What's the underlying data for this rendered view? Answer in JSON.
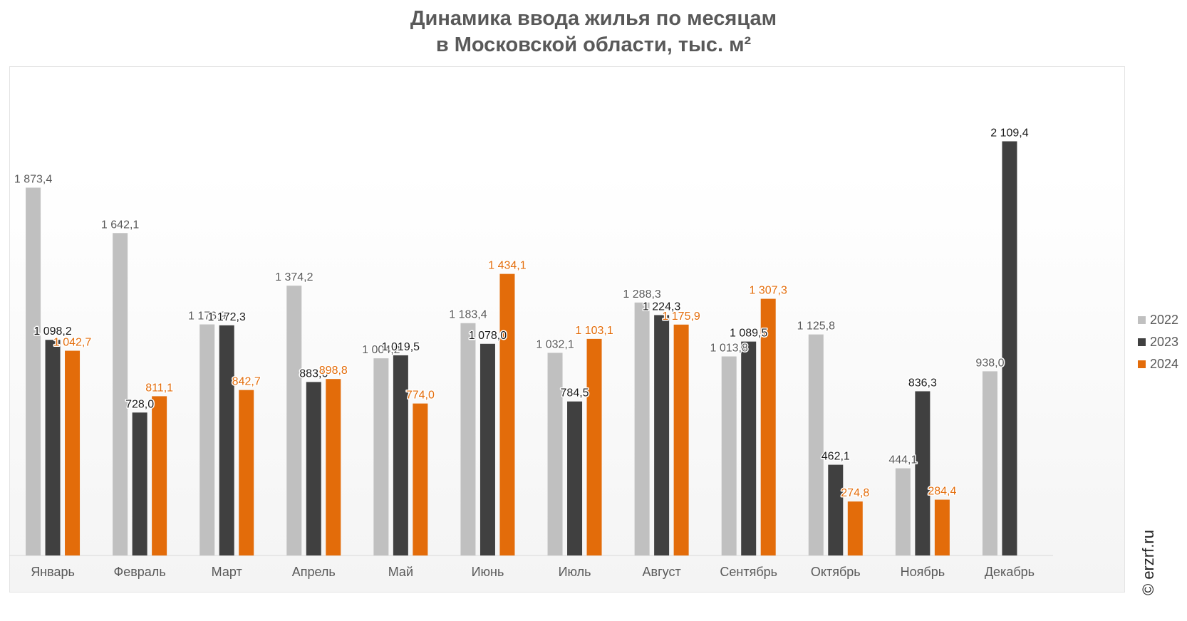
{
  "chart_data": {
    "type": "bar",
    "title_lines": [
      "Динамика ввода жилья по месяцам",
      "в Московской области, тыс. м²"
    ],
    "categories": [
      "Январь",
      "Февраль",
      "Март",
      "Апрель",
      "Май",
      "Июнь",
      "Июль",
      "Август",
      "Сентябрь",
      "Октябрь",
      "Ноябрь",
      "Декабрь"
    ],
    "series": [
      {
        "name": "2022",
        "color": "#c0c0c0",
        "label_color": "#595959",
        "values": [
          1873.4,
          1642.1,
          1176.9,
          1374.2,
          1004.2,
          1183.4,
          1032.1,
          1288.3,
          1013.8,
          1125.8,
          444.1,
          938.0
        ],
        "labels": [
          "1 873,4",
          "1 642,1",
          "1 176,9",
          "1 374,2",
          "1 004,2",
          "1 183,4",
          "1 032,1",
          "1 288,3",
          "1 013,8",
          "1 125,8",
          "444,1",
          "938,0"
        ]
      },
      {
        "name": "2023",
        "color": "#404040",
        "label_color": "#1a1a1a",
        "values": [
          1098.2,
          728.0,
          1172.3,
          883.6,
          1019.5,
          1078.0,
          784.5,
          1224.3,
          1089.5,
          462.1,
          836.3,
          2109.4
        ],
        "labels": [
          "1 098,2",
          "728,0",
          "1 172,3",
          "883,6",
          "1 019,5",
          "1 078,0",
          "784,5",
          "1 224,3",
          "1 089,5",
          "462,1",
          "836,3",
          "2 109,4"
        ]
      },
      {
        "name": "2024",
        "color": "#e36c0a",
        "label_color": "#e36c0a",
        "values": [
          1042.7,
          811.1,
          842.7,
          898.8,
          774.0,
          1434.1,
          1103.1,
          1175.9,
          1307.3,
          274.8,
          284.4,
          null
        ],
        "labels": [
          "1 042,7",
          "811,1",
          "842,7",
          "898,8",
          "774,0",
          "1 434,1",
          "1 103,1",
          "1 175,9",
          "1 307,3",
          "274,8",
          "284,4",
          null
        ]
      }
    ],
    "ylim": [
      0,
      2400
    ],
    "grid": false,
    "legend_position": "right"
  },
  "source": "© erzrf.ru"
}
